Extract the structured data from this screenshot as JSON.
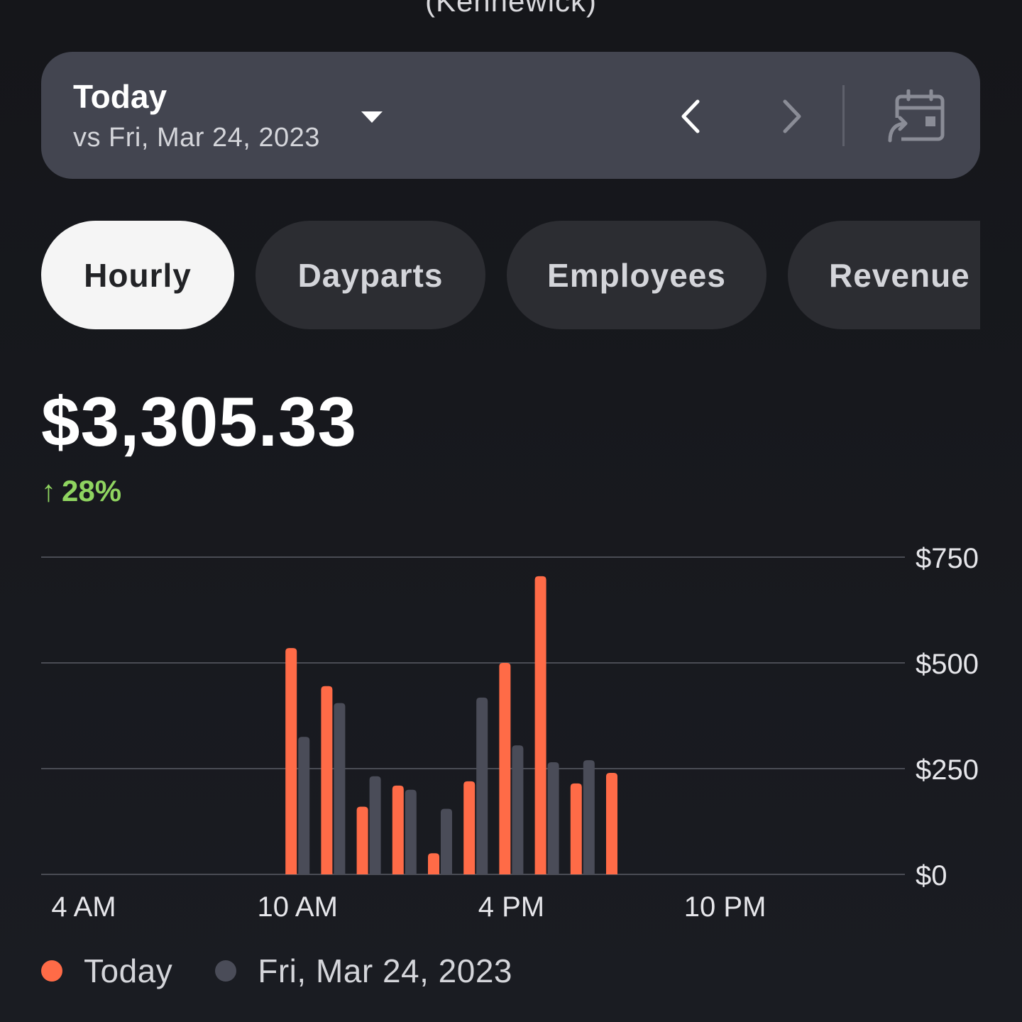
{
  "header": {
    "location": "(Kennewick)"
  },
  "date_bar": {
    "title": "Today",
    "comparison": "vs Fri, Mar 24, 2023",
    "icons": {
      "dropdown": "chevron-down-icon",
      "previous": "chevron-left-icon",
      "next": "chevron-right-icon",
      "calendar": "calendar-compare-icon"
    }
  },
  "tabs": [
    {
      "label": "Hourly",
      "active": true
    },
    {
      "label": "Dayparts",
      "active": false
    },
    {
      "label": "Employees",
      "active": false
    },
    {
      "label": "Revenue c",
      "active": false
    }
  ],
  "summary": {
    "total": "$3,305.33",
    "change_arrow": "↑",
    "change": "28%",
    "change_color": "#8fd460"
  },
  "legend": [
    {
      "label": "Today",
      "color": "#ff6b47"
    },
    {
      "label": "Fri, Mar 24, 2023",
      "color": "#4a4c58"
    }
  ],
  "chart_data": {
    "type": "bar",
    "x": [
      "4 AM",
      "5 AM",
      "6 AM",
      "7 AM",
      "8 AM",
      "9 AM",
      "10 AM",
      "11 AM",
      "12 PM",
      "1 PM",
      "2 PM",
      "3 PM",
      "4 PM",
      "5 PM",
      "6 PM",
      "7 PM",
      "8 PM",
      "9 PM",
      "10 PM",
      "11 PM"
    ],
    "x_tick_labels": [
      "4 AM",
      "10 AM",
      "4 PM",
      "10 PM"
    ],
    "series": [
      {
        "name": "Today",
        "color": "#ff6b47",
        "values": [
          0,
          0,
          0,
          0,
          0,
          0,
          535,
          445,
          160,
          210,
          50,
          220,
          500,
          705,
          215,
          240,
          0,
          0,
          0,
          0
        ]
      },
      {
        "name": "Fri, Mar 24, 2023",
        "color": "#4a4c58",
        "values": [
          0,
          0,
          0,
          0,
          0,
          0,
          325,
          405,
          232,
          200,
          155,
          418,
          305,
          265,
          270,
          0,
          0,
          0,
          0,
          0
        ]
      }
    ],
    "y_ticks": [
      "$0",
      "$250",
      "$500",
      "$750"
    ],
    "y_tick_values": [
      0,
      250,
      500,
      750
    ],
    "ylim": [
      0,
      750
    ],
    "grid": true,
    "y_axis_position": "right",
    "legend_position": "bottom-left"
  }
}
